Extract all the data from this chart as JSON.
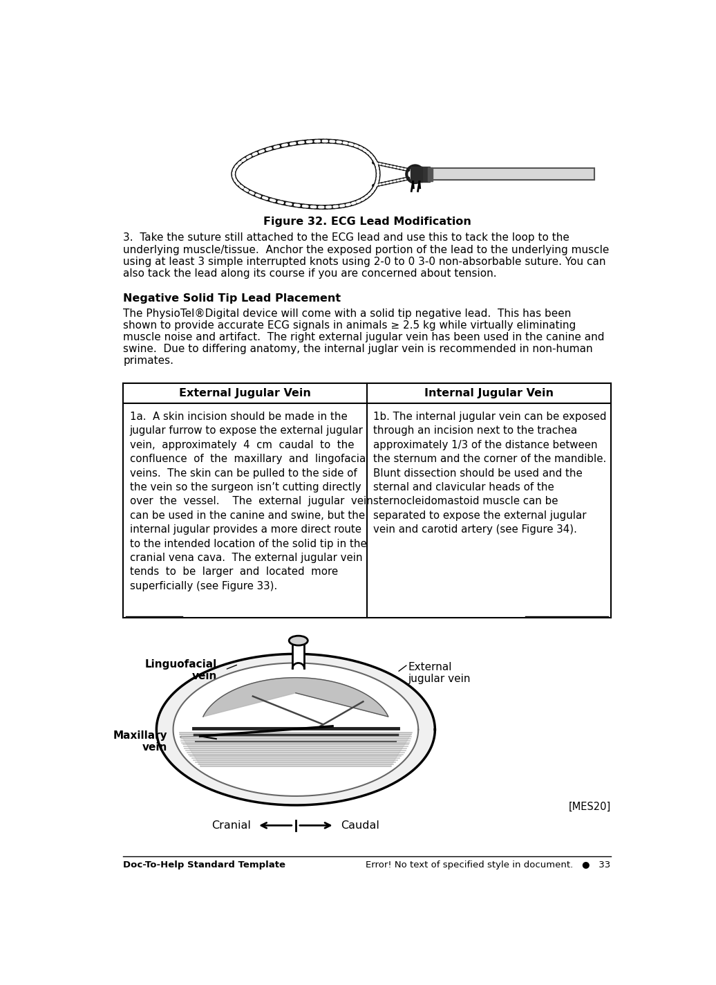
{
  "page_width": 10.36,
  "page_height": 14.24,
  "bg_color": "#ffffff",
  "figure_caption": "Figure 32. ECG Lead Modification",
  "para3_text": "3.  Take the suture still attached to the ECG lead and use this to tack the loop to the underlying muscle/tissue.  Anchor the exposed portion of the lead to the underlying muscle using at least 3 simple interrupted knots using 2-0 to 0 3-0 non-absorbable suture. You can also tack the lead along its course if you are concerned about tension.",
  "heading_bold": "Negative Solid Tip Lead Placement",
  "heading_para": "The PhysioTel®Digital device will come with a solid tip negative lead.  This has been shown to provide accurate ECG signals in animals ≥ 2.5 kg while virtually eliminating muscle noise and artifact.  The right external jugular vein has been used in the canine and swine.  Due to differing anatomy, the internal juglar vein is recommended in non-human primates.",
  "table_header_left": "External Jugular Vein",
  "table_header_right": "Internal Jugular Vein",
  "table_left_text": "1a.  A skin incision should be made in the jugular furrow to expose the external jugular vein,  approximately  4  cm  caudal  to  the confluence  of  the  maxillary  and  lingofacial veins.  The skin can be pulled to the side of the vein so the surgeon isn’t cutting directly over  the  vessel.    The  external  jugular  vein can be used in the canine and swine, but the internal jugular provides a more direct route to the intended location of the solid tip in the cranial vena cava.  The external jugular vein tends  to  be  larger  and  located  more superficially (see Figure 33).",
  "table_right_text": "1b. The internal jugular vein can be exposed through an incision next to the trachea approximately 1/3 of the distance between the sternum and the corner of the mandible.  Blunt dissection should be used and the sternal and clavicular heads of the sternocleidomastoid muscle can be separated to expose the external jugular vein and carotid artery (see Figure 34).",
  "label_linguofacial": "Linguofacial\nvein",
  "label_external": "External\njugular vein",
  "label_maxillary": "Maxillary\nvein",
  "label_cranial": "Cranial",
  "label_caudal": "Caudal",
  "label_mes20": "[MES20]",
  "footer_left": "Doc-To-Help Standard Template",
  "footer_right": "Error! No text of specified style in document.   ●   33",
  "text_color": "#000000",
  "table_border_color": "#000000",
  "font_size_body": 11.0,
  "font_size_caption": 11.5,
  "font_size_footer": 9.5
}
